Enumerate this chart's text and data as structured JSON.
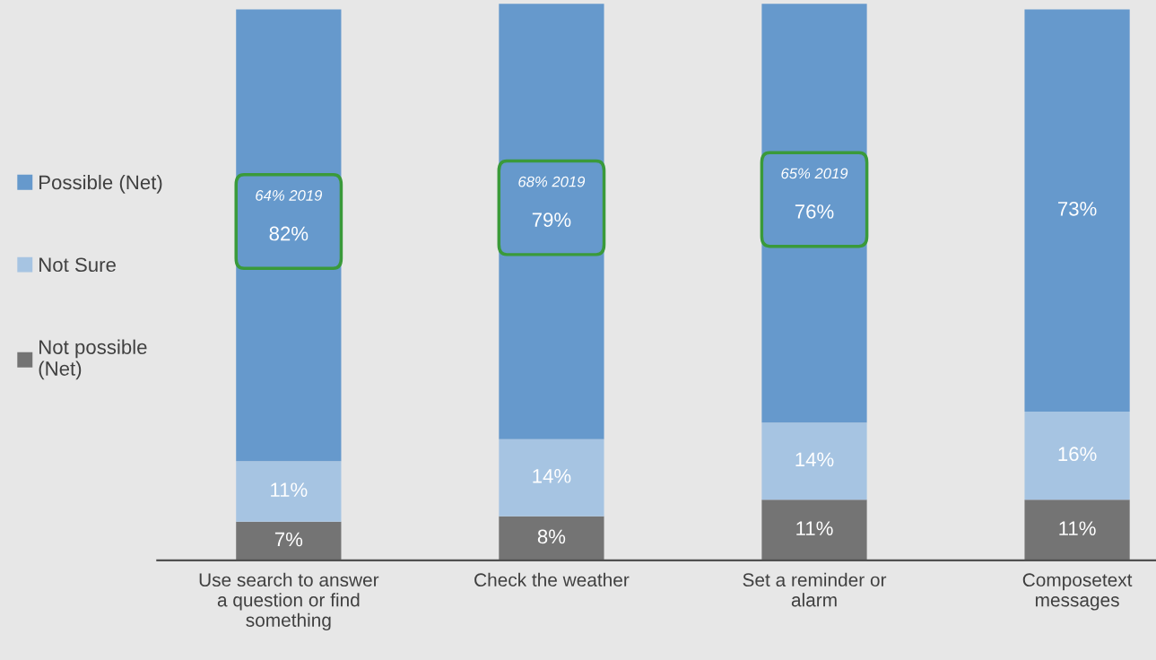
{
  "chart_data": {
    "type": "bar",
    "stacked": true,
    "legend": "left",
    "grid": false,
    "categories": [
      "Use search to answer\na question or find\nsomething",
      "Check the weather",
      "Set a reminder or\nalarm",
      "Composetext\nmessages"
    ],
    "series": [
      {
        "name": "Not possible\n(Net)",
        "color": "#747474",
        "values": [
          7,
          8,
          11,
          11
        ],
        "value_labels": [
          "7%",
          "8%",
          "11%",
          "11%"
        ]
      },
      {
        "name": "Not Sure",
        "color": "#a6c4e2",
        "values": [
          11,
          14,
          14,
          16
        ],
        "value_labels": [
          "11%",
          "14%",
          "14%",
          "16%"
        ]
      },
      {
        "name": "Possible (Net)",
        "color": "#6699cc",
        "values": [
          82,
          79,
          76,
          73
        ],
        "value_labels": [
          "82%",
          "79%",
          "76%",
          "73%"
        ]
      }
    ],
    "annotations": [
      "64% 2019",
      "68% 2019",
      "65% 2019"
    ]
  }
}
